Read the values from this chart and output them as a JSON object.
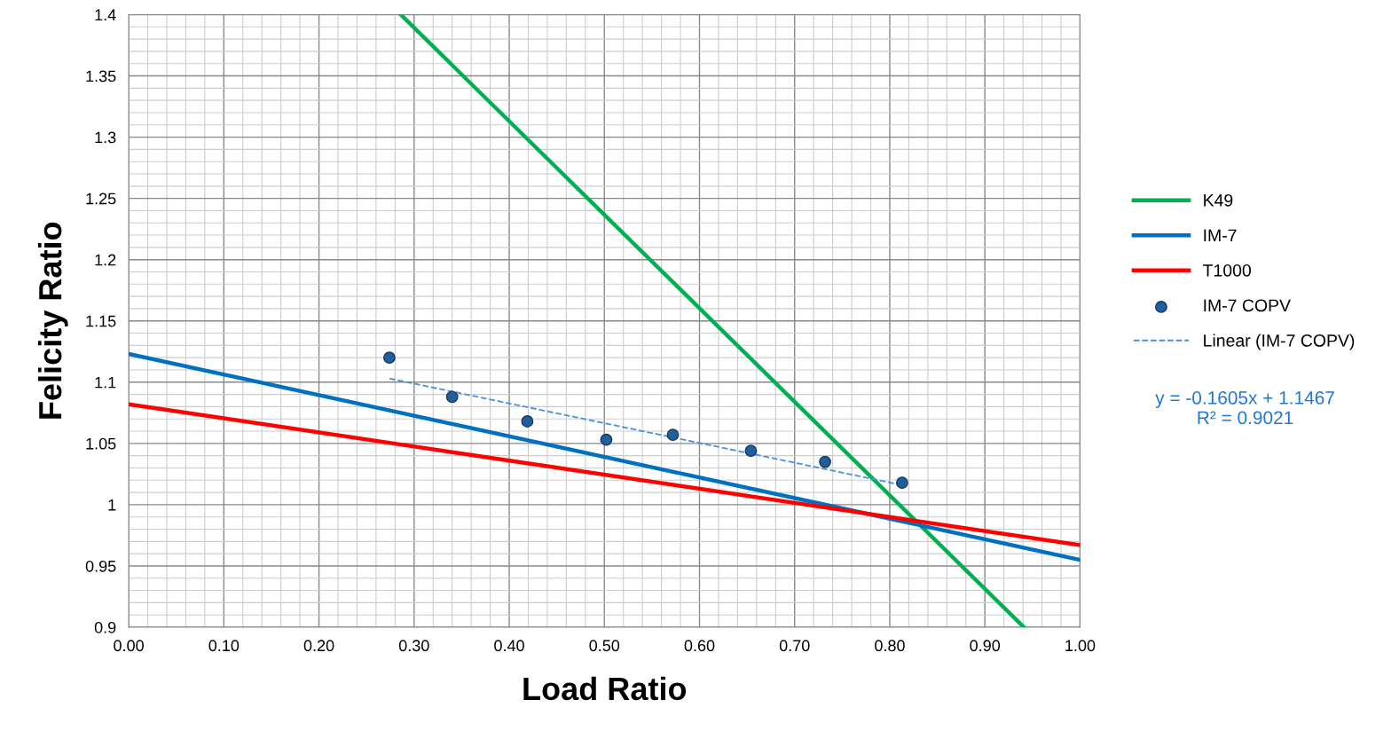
{
  "chart_data": {
    "type": "line",
    "xlabel": "Load Ratio",
    "ylabel": "Felicity Ratio",
    "xlim": [
      0,
      1
    ],
    "xticks": [
      {
        "value": 0,
        "label": "0.00"
      },
      {
        "value": 0.1,
        "label": "0.10"
      },
      {
        "value": 0.2,
        "label": "0.20"
      },
      {
        "value": 0.3,
        "label": "0.30"
      },
      {
        "value": 0.4,
        "label": "0.40"
      },
      {
        "value": 0.5,
        "label": "0.50"
      },
      {
        "value": 0.6,
        "label": "0.60"
      },
      {
        "value": 0.7,
        "label": "0.70"
      },
      {
        "value": 0.8,
        "label": "0.80"
      },
      {
        "value": 0.9,
        "label": "0.90"
      },
      {
        "value": 1,
        "label": "1.00"
      }
    ],
    "ylim": [
      0.9,
      1.4
    ],
    "yticks": [
      0.9,
      0.95,
      1,
      1.05,
      1.1,
      1.15,
      1.2,
      1.25,
      1.3,
      1.35,
      1.4
    ],
    "grid": true,
    "legend": "right",
    "series": [
      {
        "name": "K49",
        "color": "#00b050",
        "x": [
          0.286,
          0.941
        ],
        "values": [
          1.4,
          0.9
        ]
      },
      {
        "name": "IM-7",
        "color": "#0070c0",
        "x": [
          0,
          1
        ],
        "values": [
          1.123,
          0.955
        ]
      },
      {
        "name": "T1000",
        "color": "#ff0000",
        "x": [
          0,
          1
        ],
        "values": [
          1.082,
          0.967
        ]
      },
      {
        "name": "IM-7 COPV",
        "type": "scatter",
        "color": "#1f5f9f",
        "marker": "circle",
        "x": [
          0.274,
          0.34,
          0.419,
          0.502,
          0.572,
          0.654,
          0.732,
          0.813
        ],
        "values": [
          1.12,
          1.088,
          1.068,
          1.053,
          1.057,
          1.044,
          1.035,
          1.018
        ]
      },
      {
        "name": "Linear (IM-7 COPV)",
        "color": "#4a90d9",
        "line_style": "dashed",
        "x": [
          0.274,
          0.813
        ],
        "values": [
          1.103,
          1.016
        ]
      }
    ],
    "annotations": [
      "y = -0.1605x + 1.1467\nR² = 0.9021"
    ]
  }
}
